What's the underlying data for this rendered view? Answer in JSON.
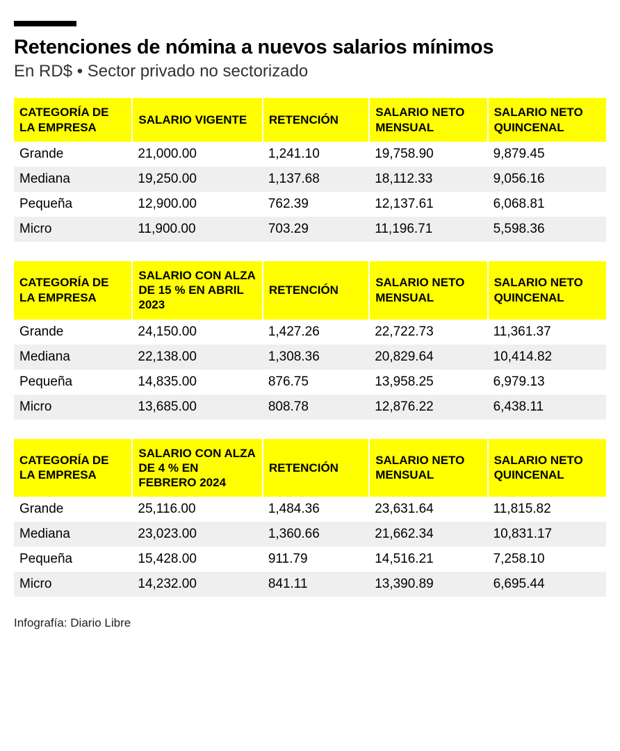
{
  "header": {
    "title": "Retenciones de nómina a nuevos salarios mínimos",
    "subtitle": "En RD$ • Sector privado no sectorizado"
  },
  "tables": [
    {
      "columns": [
        "CATEGORÍA DE LA EMPRESA",
        "SALARIO VIGENTE",
        "RETENCIÓN",
        "SALARIO NETO MENSUAL",
        "SALARIO NETO QUINCENAL"
      ],
      "rows": [
        [
          "Grande",
          "21,000.00",
          "1,241.10",
          "19,758.90",
          "9,879.45"
        ],
        [
          "Mediana",
          "19,250.00",
          "1,137.68",
          "18,112.33",
          "9,056.16"
        ],
        [
          "Pequeña",
          "12,900.00",
          "762.39",
          "12,137.61",
          "6,068.81"
        ],
        [
          "Micro",
          "11,900.00",
          "703.29",
          "11,196.71",
          "5,598.36"
        ]
      ]
    },
    {
      "columns": [
        "CATEGORÍA DE LA EMPRESA",
        "SALARIO CON ALZA DE 15 % EN ABRIL 2023",
        "RETENCIÓN",
        "SALARIO NETO MENSUAL",
        "SALARIO NETO QUINCENAL"
      ],
      "rows": [
        [
          "Grande",
          "24,150.00",
          "1,427.26",
          "22,722.73",
          "11,361.37"
        ],
        [
          "Mediana",
          "22,138.00",
          "1,308.36",
          "20,829.64",
          "10,414.82"
        ],
        [
          "Pequeña",
          "14,835.00",
          "876.75",
          "13,958.25",
          "6,979.13"
        ],
        [
          "Micro",
          "13,685.00",
          "808.78",
          "12,876.22",
          "6,438.11"
        ]
      ]
    },
    {
      "columns": [
        "CATEGORÍA DE LA EMPRESA",
        "SALARIO CON ALZA DE 4 % EN FEBRERO 2024",
        "RETENCIÓN",
        "SALARIO NETO MENSUAL",
        "SALARIO NETO QUINCENAL"
      ],
      "rows": [
        [
          "Grande",
          "25,116.00",
          "1,484.36",
          "23,631.64",
          "11,815.82"
        ],
        [
          "Mediana",
          "23,023.00",
          "1,360.66",
          "21,662.34",
          "10,831.17"
        ],
        [
          "Pequeña",
          "15,428.00",
          "911.79",
          "14,516.21",
          "7,258.10"
        ],
        [
          "Micro",
          "14,232.00",
          "841.11",
          "13,390.89",
          "6,695.44"
        ]
      ]
    }
  ],
  "credit": "Infografía: Diario Libre",
  "style": {
    "header_bg": "#ffff00",
    "row_alt_bg": "#efefef",
    "row_bg": "#ffffff",
    "text_color": "#000000",
    "title_fontsize": 29,
    "subtitle_fontsize": 24,
    "th_fontsize": 17,
    "td_fontsize": 19,
    "col_widths_pct": [
      20,
      22,
      18,
      20,
      20
    ]
  }
}
